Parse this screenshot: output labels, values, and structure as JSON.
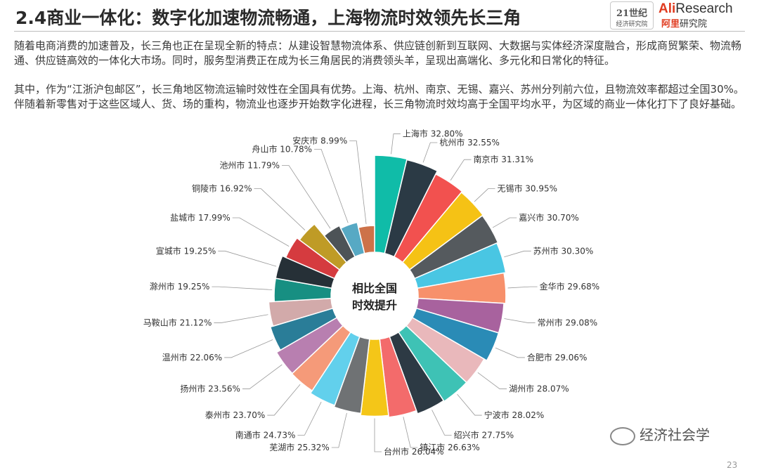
{
  "header": {
    "title": "2.4商业一体化：数字化加速物流畅通，上海物流时效领先长三角",
    "logo21_big": "21世纪",
    "logo21_small": "经济研究院",
    "ali_logo_a": "Ali",
    "ali_logo_b": "Research",
    "ali_logo_cn": "阿里",
    "ali_logo_cn2": "研究院"
  },
  "body": {
    "paragraph1": "随着电商消费的加速普及，长三角也正在呈现全新的特点：从建设智慧物流体系、供应链创新到互联网、大数据与实体经济深度融合，形成商贸繁荣、物流畅通、供应链高效的一体化大市场。同时，服务型消费正在成为长三角居民的消费领头羊，呈现出高端化、多元化和日常化的特征。",
    "paragraph2": "其中，作为“江浙沪包邮区”，长三角地区物流运输时效性在全国具有优势。上海、杭州、南京、无锡、嘉兴、苏州分列前六位，且物流效率都超过全国30%。伴随着新零售对于这些区域人、货、场的重构，物流业也逐步开始数字化进程，长三角物流时效均高于全国平均水平，为区域的商业一体化打下了良好基础。"
  },
  "chart_data": {
    "type": "pie",
    "subtype": "nightingale-rose-donut",
    "center_label_line1": "相比全国",
    "center_label_line2": "时效提升",
    "unit": "%",
    "slices": [
      {
        "name": "上海市",
        "value": 32.8,
        "label": "32.80%",
        "color": "#10bca8"
      },
      {
        "name": "杭州市",
        "value": 32.55,
        "label": "32.55%",
        "color": "#2b3a45"
      },
      {
        "name": "南京市",
        "value": 31.31,
        "label": "31.31%",
        "color": "#f2514f"
      },
      {
        "name": "无锡市",
        "value": 30.95,
        "label": "30.95%",
        "color": "#f5c215"
      },
      {
        "name": "嘉兴市",
        "value": 30.7,
        "label": "30.70%",
        "color": "#555a5e"
      },
      {
        "name": "苏州市",
        "value": 30.3,
        "label": "30.30%",
        "color": "#49c6e3"
      },
      {
        "name": "金华市",
        "value": 29.68,
        "label": "29.68%",
        "color": "#f7906b"
      },
      {
        "name": "常州市",
        "value": 29.08,
        "label": "29.08%",
        "color": "#a8629e"
      },
      {
        "name": "合肥市",
        "value": 29.06,
        "label": "29.06%",
        "color": "#2a8bb6"
      },
      {
        "name": "湖州市",
        "value": 28.07,
        "label": "28.07%",
        "color": "#e9b8bb"
      },
      {
        "name": "宁波市",
        "value": 28.02,
        "label": "28.02%",
        "color": "#3ec2b5"
      },
      {
        "name": "绍兴市",
        "value": 27.75,
        "label": "27.75%",
        "color": "#2d3a44"
      },
      {
        "name": "镇江市",
        "value": 26.63,
        "label": "26.63%",
        "color": "#f36b6b"
      },
      {
        "name": "台州市",
        "value": 26.04,
        "label": "26.04%",
        "color": "#f4c618"
      },
      {
        "name": "芜湖市",
        "value": 25.32,
        "label": "25.32%",
        "color": "#6f7274"
      },
      {
        "name": "南通市",
        "value": 24.73,
        "label": "24.73%",
        "color": "#62d0ec"
      },
      {
        "name": "泰州市",
        "value": 23.7,
        "label": "23.70%",
        "color": "#f59a79"
      },
      {
        "name": "扬州市",
        "value": 23.56,
        "label": "23.56%",
        "color": "#b87fb0"
      },
      {
        "name": "温州市",
        "value": 22.06,
        "label": "22.06%",
        "color": "#2a7d98"
      },
      {
        "name": "马鞍山市",
        "value": 21.12,
        "label": "21.12%",
        "color": "#d2aaaa"
      },
      {
        "name": "滁州市",
        "value": 19.25,
        "label": "19.25%",
        "color": "#178f82"
      },
      {
        "name": "宣城市",
        "value": 19.25,
        "label": "19.25%",
        "color": "#263037"
      },
      {
        "name": "盐城市",
        "value": 17.99,
        "label": "17.99%",
        "color": "#d53b3f"
      },
      {
        "name": "铜陵市",
        "value": 16.92,
        "label": "16.92%",
        "color": "#bf9b26"
      },
      {
        "name": "池州市",
        "value": 11.79,
        "label": "11.79%",
        "color": "#4d5357"
      },
      {
        "name": "舟山市",
        "value": 10.78,
        "label": "10.78%",
        "color": "#57a9c4"
      },
      {
        "name": "安庆市",
        "value": 8.99,
        "label": "8.99%",
        "color": "#cd7249"
      }
    ]
  },
  "footer": {
    "wechat_text": "经济社会学",
    "page_number": "23"
  }
}
